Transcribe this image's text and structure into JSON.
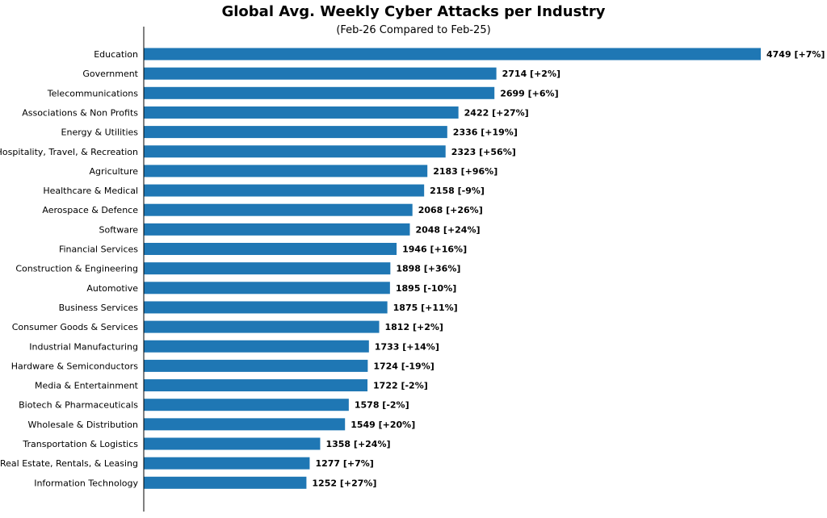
{
  "chart_data": {
    "type": "bar",
    "orientation": "horizontal",
    "title": "Global Avg. Weekly Cyber Attacks per Industry",
    "subtitle": "(Feb-26 Compared to Feb-25)",
    "xlabel": "",
    "ylabel": "",
    "bar_color": "#1f77b4",
    "grid": false,
    "xlim": [
      0,
      4800
    ],
    "categories": [
      "Education",
      "Government",
      "Telecommunications",
      "Associations & Non Profits",
      "Energy & Utilities",
      "Hospitality, Travel, & Recreation",
      "Agriculture",
      "Healthcare & Medical",
      "Aerospace & Defence",
      "Software",
      "Financial Services",
      "Construction & Engineering",
      "Automotive",
      "Business Services",
      "Consumer Goods & Services",
      "Industrial Manufacturing",
      "Hardware & Semiconductors",
      "Media & Entertainment",
      "Biotech & Pharmaceuticals",
      "Wholesale & Distribution",
      "Transportation & Logistics",
      "Real Estate, Rentals, & Leasing",
      "Information Technology"
    ],
    "values": [
      4749,
      2714,
      2699,
      2422,
      2336,
      2323,
      2183,
      2158,
      2068,
      2048,
      1946,
      1898,
      1895,
      1875,
      1812,
      1733,
      1724,
      1722,
      1578,
      1549,
      1358,
      1277,
      1252
    ],
    "changes": [
      "+7%",
      "+2%",
      "+6%",
      "+27%",
      "+19%",
      "+56%",
      "+96%",
      "-9%",
      "+26%",
      "+24%",
      "+16%",
      "+36%",
      "-10%",
      "+11%",
      "+2%",
      "+14%",
      "-19%",
      "-2%",
      "-2%",
      "+20%",
      "+24%",
      "+7%",
      "+27%"
    ],
    "data_labels": [
      "4749 [+7%]",
      "2714 [+2%]",
      "2699 [+6%]",
      "2422 [+27%]",
      "2336 [+19%]",
      "2323 [+56%]",
      "2183 [+96%]",
      "2158 [-9%]",
      "2068 [+26%]",
      "2048 [+24%]",
      "1946 [+16%]",
      "1898 [+36%]",
      "1895 [-10%]",
      "1875 [+11%]",
      "1812 [+2%]",
      "1733 [+14%]",
      "1724 [-19%]",
      "1722 [-2%]",
      "1578 [-2%]",
      "1549 [+20%]",
      "1358 [+24%]",
      "1277 [+7%]",
      "1252 [+27%]"
    ]
  }
}
